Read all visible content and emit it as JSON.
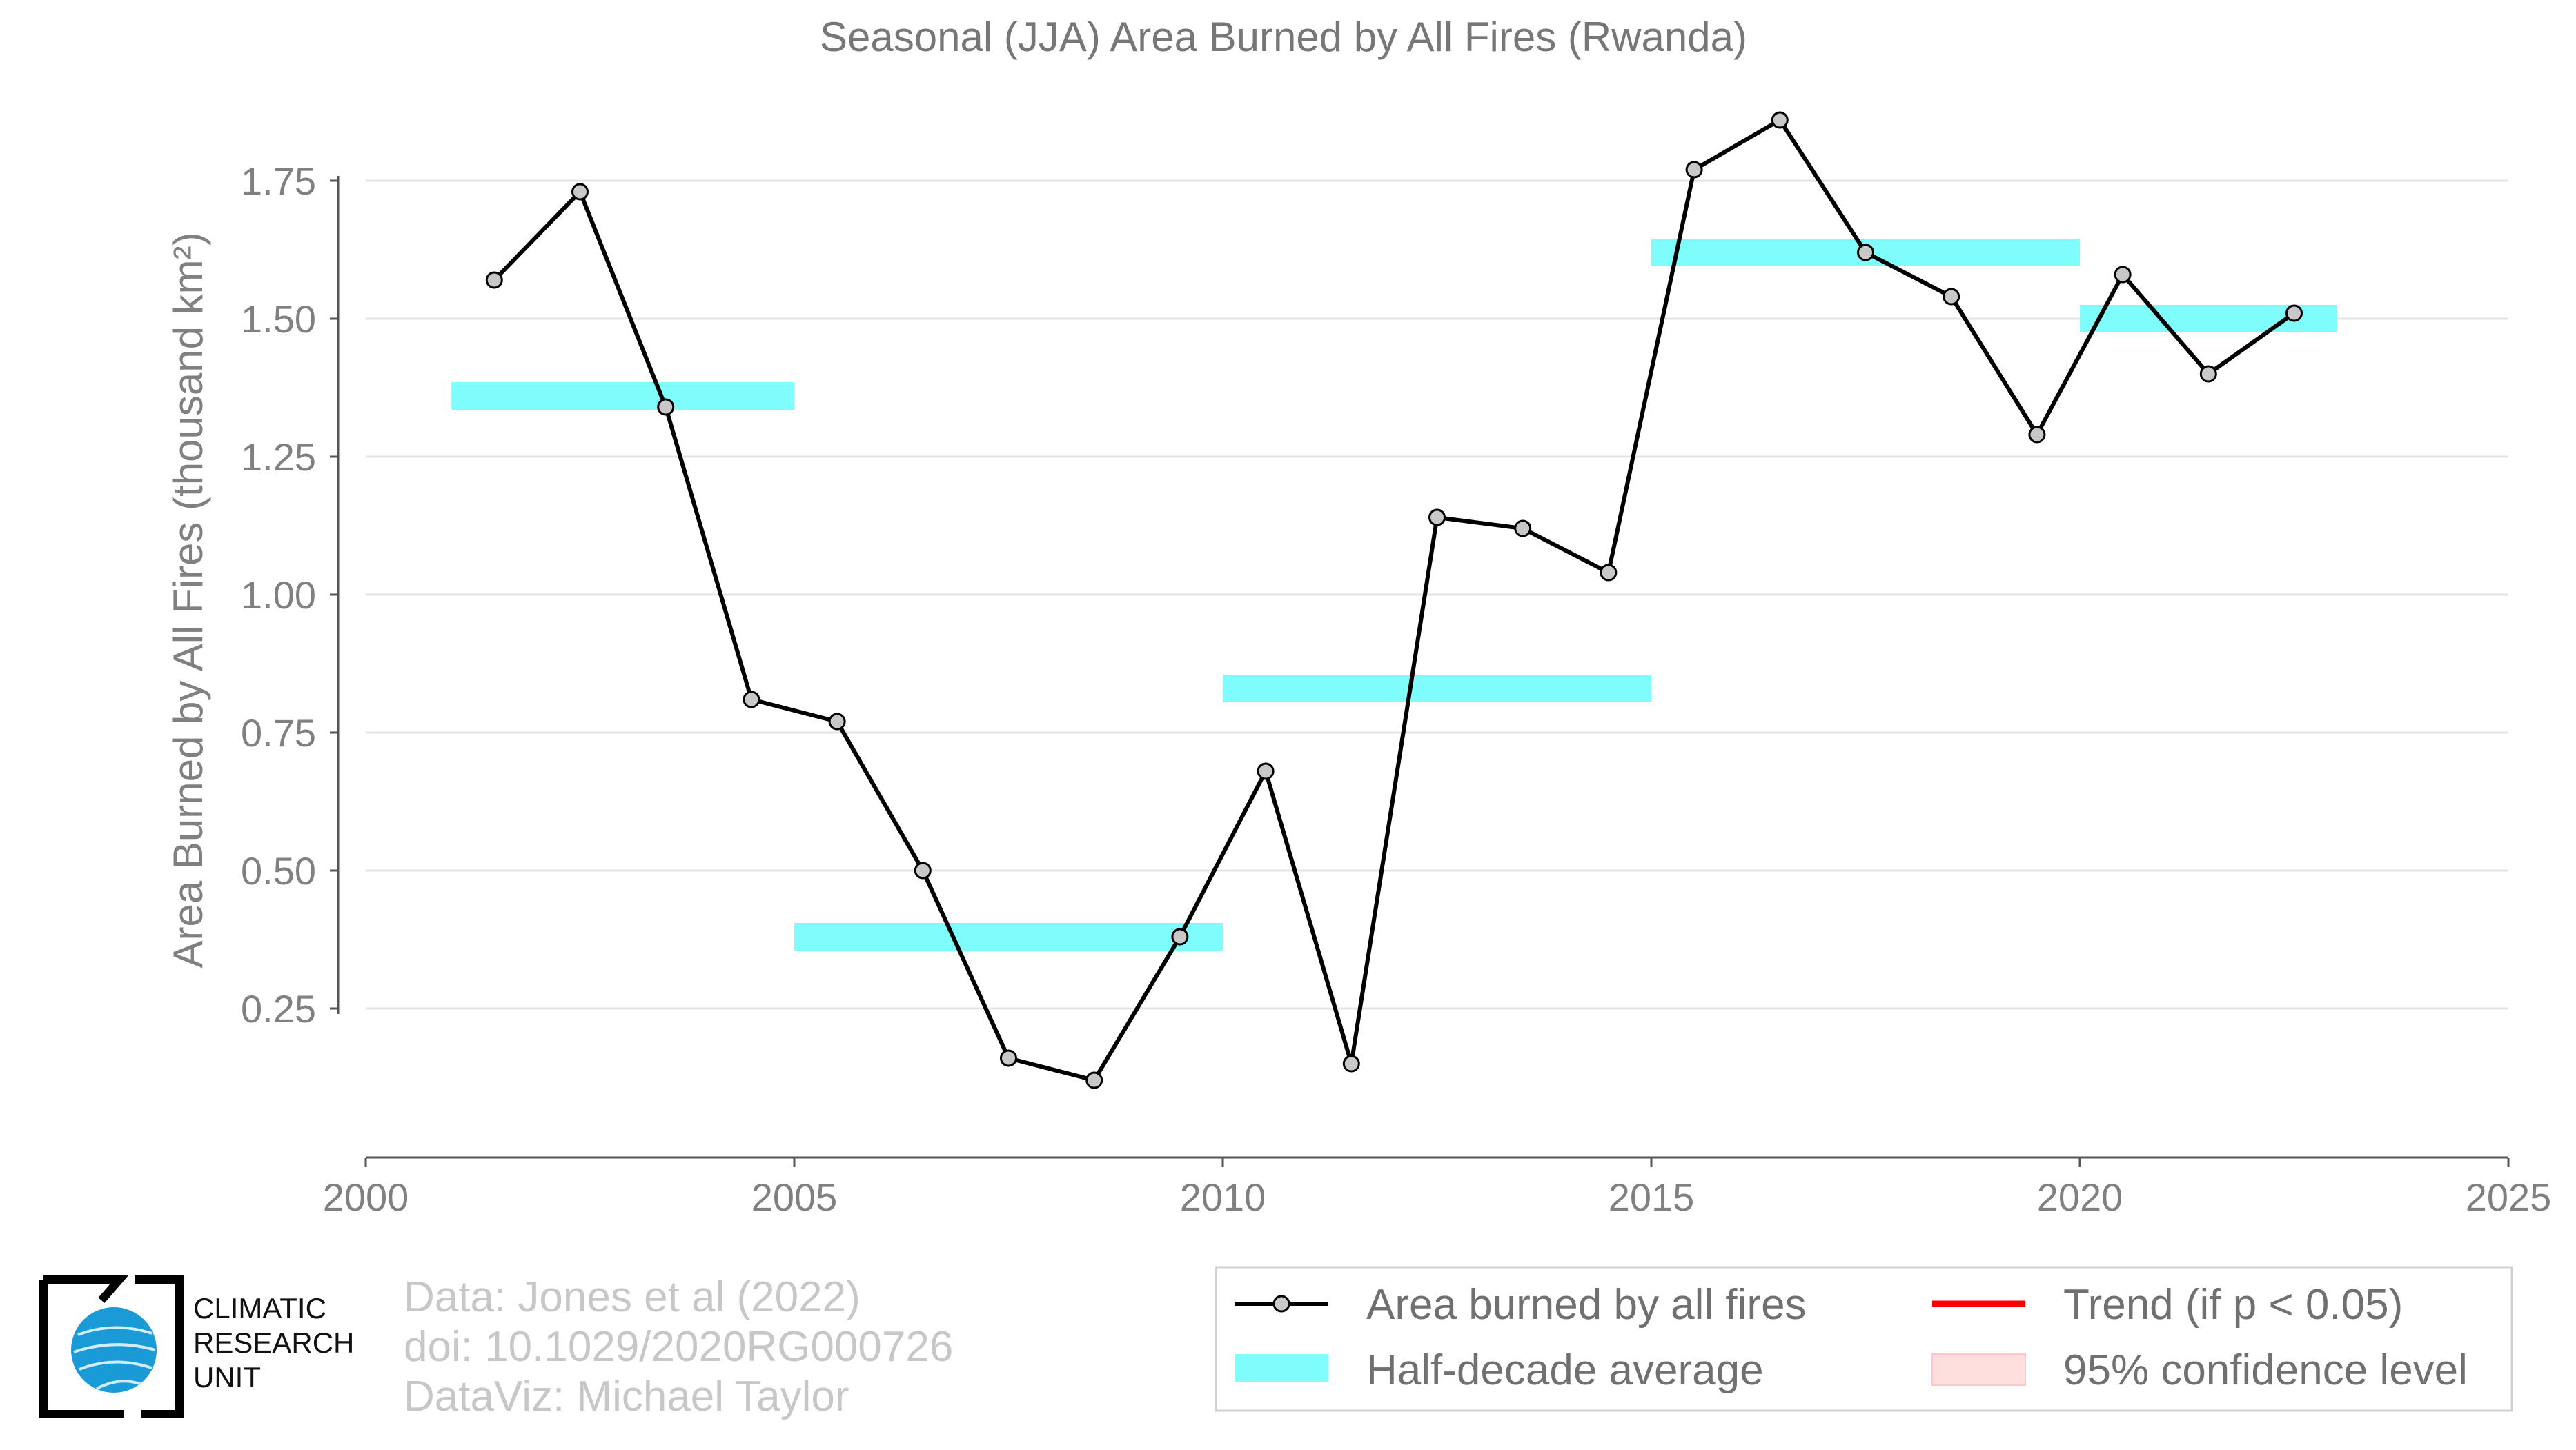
{
  "chart_data": {
    "type": "line",
    "title": "Seasonal (JJA) Area Burned by All Fires (Rwanda)",
    "xlabel": "",
    "ylabel": "Area Burned by All Fires (thousand km²)",
    "xlim": [
      2000,
      2025
    ],
    "ylim": [
      0,
      1.85
    ],
    "x_ticks": [
      "2000",
      "2005",
      "2010",
      "2015",
      "2020",
      "2025"
    ],
    "y_ticks": [
      "0.25",
      "0.50",
      "0.75",
      "1.00",
      "1.25",
      "1.50",
      "1.75"
    ],
    "grid": "horizontal",
    "legend_position": "bottom-right",
    "series": [
      {
        "name": "Area burned by all fires",
        "color": "#000000",
        "marker_color": "#c8c8c8",
        "x": [
          2001.5,
          2002.5,
          2003.5,
          2004.5,
          2005.5,
          2006.5,
          2007.5,
          2008.5,
          2009.5,
          2010.5,
          2011.5,
          2012.5,
          2013.5,
          2014.5,
          2015.5,
          2016.5,
          2017.5,
          2018.5,
          2019.5,
          2020.5,
          2021.5,
          2022.5
        ],
        "y": [
          1.57,
          1.73,
          1.34,
          0.81,
          0.77,
          0.5,
          0.16,
          0.12,
          0.38,
          0.68,
          0.15,
          1.14,
          1.12,
          1.04,
          1.77,
          1.86,
          1.62,
          1.54,
          1.29,
          1.58,
          1.4,
          1.51
        ]
      }
    ],
    "half_decade_averages": {
      "name": "Half-decade average",
      "color": "#7ffcfc",
      "segments": [
        {
          "x0": 2001,
          "x1": 2005,
          "y": 1.36
        },
        {
          "x0": 2005,
          "x1": 2010,
          "y": 0.38
        },
        {
          "x0": 2010,
          "x1": 2015,
          "y": 0.83
        },
        {
          "x0": 2015,
          "x1": 2020,
          "y": 1.62
        },
        {
          "x0": 2020,
          "x1": 2023,
          "y": 1.5
        }
      ]
    },
    "legend": [
      {
        "label": "Area burned by all fires",
        "kind": "line-marker",
        "color": "#000000"
      },
      {
        "label": "Trend (if p < 0.05)",
        "kind": "line",
        "color": "#ff0000"
      },
      {
        "label": "Half-decade average",
        "kind": "patch",
        "color": "#7ffcfc"
      },
      {
        "label": "95% confidence level",
        "kind": "patch",
        "color": "#ffdede"
      }
    ]
  },
  "credits": {
    "line1": "Data: Jones et al (2022)",
    "line2": "doi: 10.1029/2020RG000726",
    "line3": "DataViz: Michael Taylor"
  },
  "logo": {
    "line1": "CLIMATIC",
    "line2": "RESEARCH",
    "line3": "UNIT",
    "globe_color": "#1a9ad6"
  }
}
